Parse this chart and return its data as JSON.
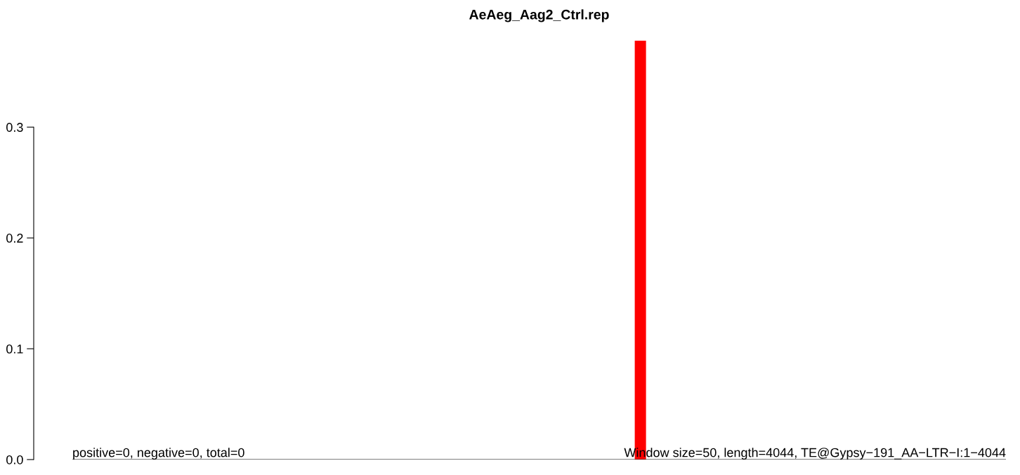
{
  "chart_data": {
    "type": "bar",
    "title": "AeAeg_Aag2_Ctrl.rep",
    "categories": [
      null,
      null,
      null,
      null,
      null,
      null,
      null,
      null,
      null,
      null,
      null,
      null,
      null,
      null,
      null,
      null,
      null,
      null,
      null,
      null,
      null,
      null,
      null,
      null,
      null,
      null,
      null,
      null,
      null,
      null,
      null,
      null,
      null,
      null,
      null,
      null,
      null,
      null,
      null,
      null,
      null,
      null,
      null,
      null,
      null,
      null,
      null,
      null,
      null,
      null,
      null,
      null,
      null,
      null,
      null,
      null,
      null,
      null,
      null,
      null,
      null,
      null,
      null,
      null,
      null,
      null,
      null,
      null,
      null,
      null,
      null,
      null,
      null,
      null,
      null,
      null,
      null,
      null,
      null,
      null,
      null,
      null,
      null
    ],
    "values": [
      0,
      0,
      0,
      0,
      0,
      0,
      0,
      0,
      0,
      0,
      0,
      0,
      0,
      0,
      0,
      0,
      0,
      0,
      0,
      0,
      0,
      0,
      0,
      0,
      0,
      0,
      0,
      0,
      0,
      0,
      0,
      0,
      0,
      0,
      0,
      0,
      0,
      0,
      0,
      0,
      0,
      0,
      0,
      0,
      0,
      0,
      0,
      0,
      0,
      0,
      0.378,
      0,
      0,
      0,
      0,
      0,
      0,
      0,
      0,
      0,
      0,
      0,
      0,
      0,
      0,
      0,
      0,
      0,
      0,
      0,
      0,
      0,
      0,
      0,
      0,
      0,
      0,
      0,
      0,
      0,
      0,
      0,
      0
    ],
    "color": "#ff0000",
    "ylim": [
      0,
      0.378
    ],
    "yticks": [
      {
        "value": 0,
        "label": "0.0"
      },
      0.1,
      0.2,
      0.3
    ],
    "tick_labels": "y",
    "ref_lines": [
      {
        "axis": "y",
        "value": 0,
        "color": "#000000"
      }
    ],
    "annotations": [
      "positive=0, negative=0, total=0",
      "Window size=50, length=4044, TE@Gypsy−191_AA−LTR−I:1−4044"
    ]
  }
}
